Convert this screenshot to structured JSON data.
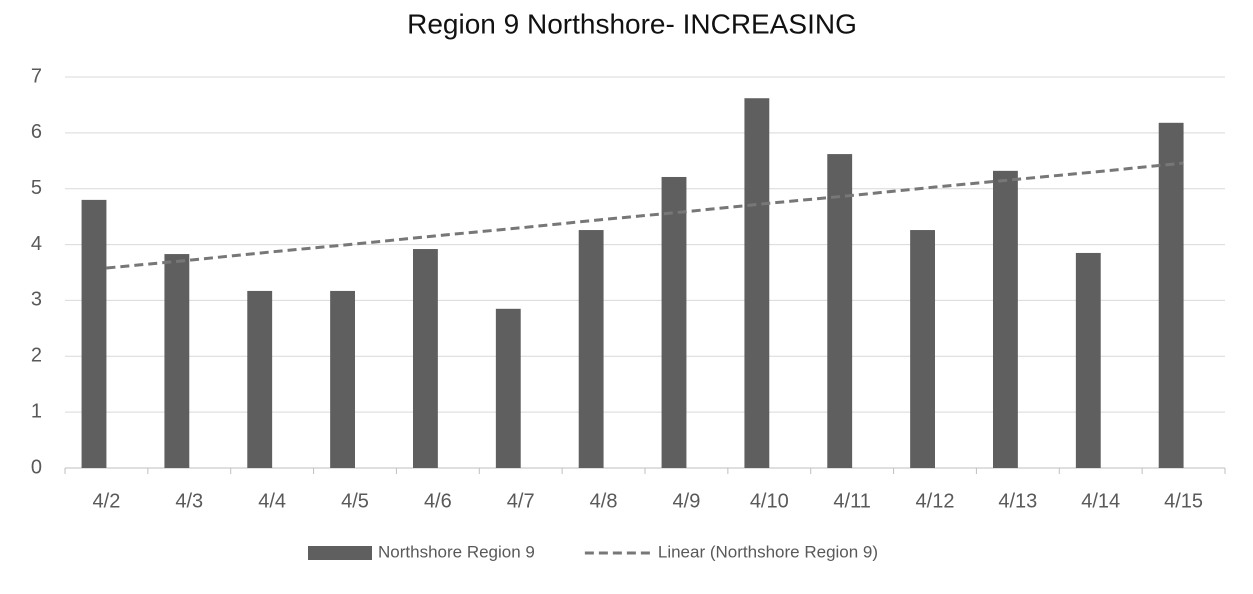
{
  "chart_data": {
    "type": "bar",
    "title": "Region 9 Northshore- INCREASING",
    "categories": [
      "4/2",
      "4/3",
      "4/4",
      "4/5",
      "4/6",
      "4/7",
      "4/8",
      "4/9",
      "4/10",
      "4/11",
      "4/12",
      "4/13",
      "4/14",
      "4/15"
    ],
    "series": [
      {
        "name": "Northshore Region 9",
        "type": "bar",
        "color": "#5f5f5f",
        "values": [
          4.8,
          3.83,
          3.17,
          3.17,
          3.92,
          2.85,
          4.26,
          5.21,
          6.62,
          5.62,
          4.26,
          5.32,
          3.85,
          6.18
        ]
      },
      {
        "name": "Linear (Northshore Region 9)",
        "type": "line",
        "color": "#777777",
        "dashed": true,
        "values": [
          3.58,
          3.72,
          3.87,
          4.01,
          4.16,
          4.3,
          4.45,
          4.59,
          4.74,
          4.88,
          5.03,
          5.17,
          5.31,
          5.46
        ]
      }
    ],
    "ylim": [
      0,
      7
    ],
    "yticks": [
      0,
      1,
      2,
      3,
      4,
      5,
      6,
      7
    ],
    "grid": true,
    "legend": "bottom"
  }
}
